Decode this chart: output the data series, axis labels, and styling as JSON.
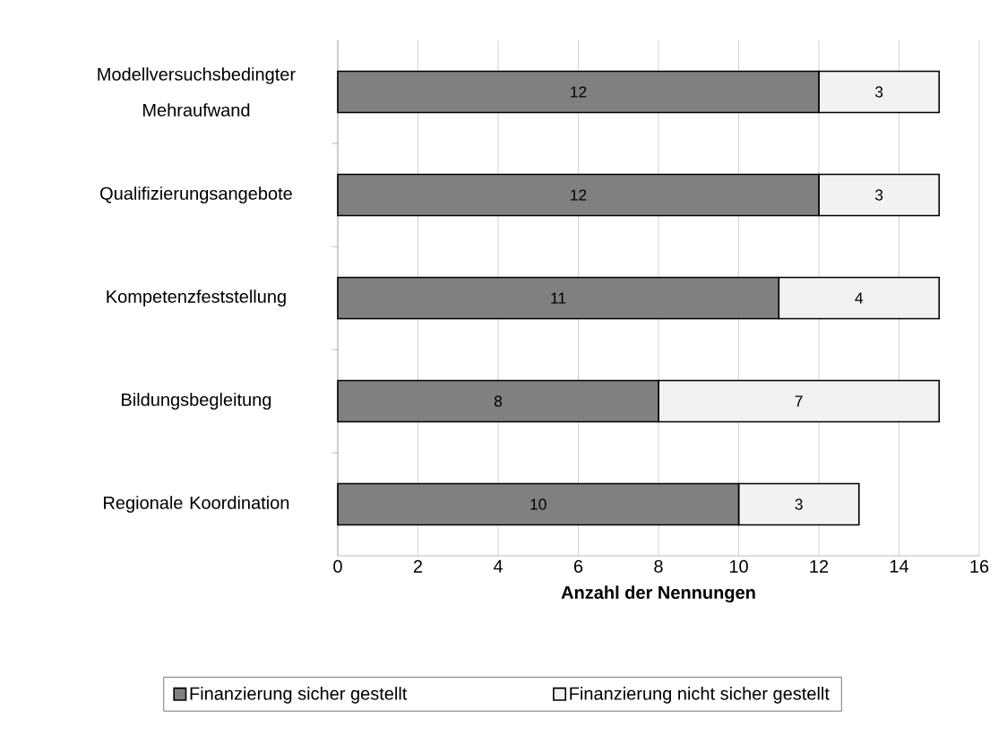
{
  "chart_data": {
    "type": "bar",
    "orientation": "horizontal",
    "stacked": true,
    "categories": [
      "Modellversuchsbedingter Mehraufwand",
      "Qualifizierungsangebote",
      "Kompetenzfeststellung",
      "Bildungsbegleitung",
      "Regionale Koordination"
    ],
    "series": [
      {
        "name": "Finanzierung sicher gestellt",
        "color": "#808080",
        "values": [
          12,
          12,
          11,
          8,
          10
        ]
      },
      {
        "name": "Finanzierung nicht sicher gestellt",
        "color": "#f2f2f2",
        "values": [
          3,
          3,
          4,
          7,
          3
        ]
      }
    ],
    "xlabel": "Anzahl der Nennungen",
    "xlim": [
      0,
      16
    ],
    "xticks": [
      0,
      2,
      4,
      6,
      8,
      10,
      12,
      14,
      16
    ],
    "grid": "x",
    "legend": "bottom",
    "data_labels": true
  }
}
